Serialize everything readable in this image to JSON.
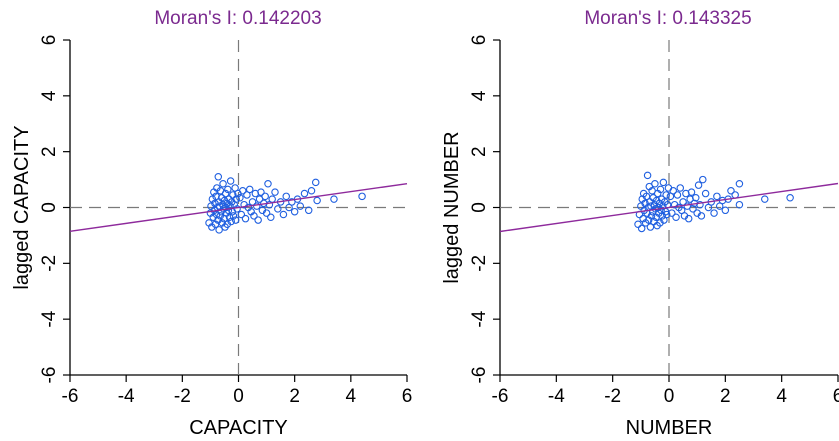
{
  "chart_data": [
    {
      "type": "scatter",
      "title": "Moran's I: 0.142203",
      "xlabel": "CAPACITY",
      "ylabel": "lagged CAPACITY",
      "xlim": [
        -6,
        6
      ],
      "ylim": [
        -6,
        6
      ],
      "xticks": [
        "-6",
        "-4",
        "-2",
        "0",
        "2",
        "4",
        "6"
      ],
      "yticks": [
        "-6",
        "-4",
        "-2",
        "0",
        "2",
        "4",
        "6"
      ],
      "reference_lines": {
        "x": 0,
        "y": 0,
        "style": "dashed"
      },
      "regression_line": {
        "slope": 0.1422,
        "intercept": 0.0
      },
      "points": [
        [
          -1.05,
          -0.55
        ],
        [
          -1.0,
          -0.2
        ],
        [
          -0.98,
          0.05
        ],
        [
          -0.95,
          -0.7
        ],
        [
          -0.93,
          0.3
        ],
        [
          -0.9,
          -0.35
        ],
        [
          -0.88,
          0.55
        ],
        [
          -0.86,
          -0.1
        ],
        [
          -0.84,
          0.15
        ],
        [
          -0.82,
          -0.6
        ],
        [
          -0.8,
          0.4
        ],
        [
          -0.78,
          -0.25
        ],
        [
          -0.77,
          0.7
        ],
        [
          -0.75,
          0.0
        ],
        [
          -0.73,
          -0.45
        ],
        [
          -0.72,
          1.1
        ],
        [
          -0.7,
          0.2
        ],
        [
          -0.69,
          -0.8
        ],
        [
          -0.67,
          0.05
        ],
        [
          -0.65,
          -0.3
        ],
        [
          -0.64,
          0.6
        ],
        [
          -0.62,
          -0.15
        ],
        [
          -0.6,
          0.35
        ],
        [
          -0.58,
          -0.55
        ],
        [
          -0.56,
          0.1
        ],
        [
          -0.55,
          0.85
        ],
        [
          -0.53,
          -0.05
        ],
        [
          -0.51,
          -0.4
        ],
        [
          -0.5,
          0.25
        ],
        [
          -0.48,
          -0.7
        ],
        [
          -0.46,
          0.5
        ],
        [
          -0.45,
          0.0
        ],
        [
          -0.43,
          -0.2
        ],
        [
          -0.41,
          0.15
        ],
        [
          -0.4,
          -0.6
        ],
        [
          -0.38,
          0.65
        ],
        [
          -0.36,
          -0.1
        ],
        [
          -0.34,
          0.3
        ],
        [
          -0.32,
          -0.35
        ],
        [
          -0.3,
          0.05
        ],
        [
          -0.28,
          0.95
        ],
        [
          -0.26,
          -0.5
        ],
        [
          -0.24,
          0.2
        ],
        [
          -0.22,
          -0.15
        ],
        [
          -0.2,
          0.45
        ],
        [
          -0.18,
          -0.3
        ],
        [
          -0.15,
          0.1
        ],
        [
          -0.12,
          0.7
        ],
        [
          -0.1,
          -0.45
        ],
        [
          -0.08,
          0.3
        ],
        [
          -0.05,
          -0.05
        ],
        [
          -0.02,
          0.5
        ],
        [
          0.05,
          0.35
        ],
        [
          0.1,
          -0.25
        ],
        [
          0.15,
          0.6
        ],
        [
          0.2,
          0.1
        ],
        [
          0.25,
          -0.4
        ],
        [
          0.3,
          0.45
        ],
        [
          0.35,
          0.0
        ],
        [
          0.4,
          0.65
        ],
        [
          0.45,
          -0.15
        ],
        [
          0.5,
          0.2
        ],
        [
          0.55,
          -0.3
        ],
        [
          0.6,
          0.5
        ],
        [
          0.65,
          0.05
        ],
        [
          0.7,
          -0.45
        ],
        [
          0.75,
          0.3
        ],
        [
          0.8,
          0.55
        ],
        [
          0.85,
          -0.1
        ],
        [
          0.9,
          0.15
        ],
        [
          0.95,
          0.4
        ],
        [
          1.0,
          -0.2
        ],
        [
          1.05,
          0.85
        ],
        [
          1.1,
          0.1
        ],
        [
          1.15,
          -0.35
        ],
        [
          1.2,
          0.3
        ],
        [
          1.3,
          0.55
        ],
        [
          1.4,
          -0.05
        ],
        [
          1.5,
          0.2
        ],
        [
          1.6,
          -0.25
        ],
        [
          1.7,
          0.4
        ],
        [
          1.8,
          0.0
        ],
        [
          1.9,
          0.2
        ],
        [
          2.0,
          -0.15
        ],
        [
          2.1,
          0.3
        ],
        [
          2.2,
          0.05
        ],
        [
          2.35,
          0.5
        ],
        [
          2.5,
          -0.1
        ],
        [
          2.6,
          0.6
        ],
        [
          2.75,
          0.9
        ],
        [
          2.8,
          0.25
        ],
        [
          3.4,
          0.3
        ],
        [
          4.4,
          0.4
        ]
      ]
    },
    {
      "type": "scatter",
      "title": "Moran's I: 0.143325",
      "xlabel": "NUMBER",
      "ylabel": "lagged NUMBER",
      "xlim": [
        -6,
        6
      ],
      "ylim": [
        -6,
        6
      ],
      "xticks": [
        "-6",
        "-4",
        "-2",
        "0",
        "2",
        "4",
        "6"
      ],
      "yticks": [
        "-6",
        "-4",
        "-2",
        "0",
        "2",
        "4",
        "6"
      ],
      "reference_lines": {
        "x": 0,
        "y": 0,
        "style": "dashed"
      },
      "regression_line": {
        "slope": 0.1433,
        "intercept": 0.0
      },
      "points": [
        [
          -1.1,
          -0.6
        ],
        [
          -1.05,
          -0.25
        ],
        [
          -1.0,
          0.05
        ],
        [
          -0.97,
          -0.75
        ],
        [
          -0.95,
          0.3
        ],
        [
          -0.92,
          -0.4
        ],
        [
          -0.9,
          0.5
        ],
        [
          -0.88,
          -0.1
        ],
        [
          -0.85,
          0.15
        ],
        [
          -0.83,
          -0.55
        ],
        [
          -0.8,
          0.4
        ],
        [
          -0.78,
          -0.2
        ],
        [
          -0.76,
          1.15
        ],
        [
          -0.74,
          0.0
        ],
        [
          -0.72,
          -0.45
        ],
        [
          -0.7,
          0.75
        ],
        [
          -0.68,
          0.2
        ],
        [
          -0.66,
          -0.7
        ],
        [
          -0.64,
          0.05
        ],
        [
          -0.62,
          -0.3
        ],
        [
          -0.6,
          0.6
        ],
        [
          -0.58,
          -0.15
        ],
        [
          -0.56,
          0.35
        ],
        [
          -0.54,
          -0.5
        ],
        [
          -0.52,
          0.1
        ],
        [
          -0.5,
          0.85
        ],
        [
          -0.48,
          -0.05
        ],
        [
          -0.46,
          -0.35
        ],
        [
          -0.44,
          0.25
        ],
        [
          -0.42,
          -0.65
        ],
        [
          -0.4,
          0.5
        ],
        [
          -0.38,
          0.0
        ],
        [
          -0.36,
          -0.2
        ],
        [
          -0.34,
          0.15
        ],
        [
          -0.32,
          -0.55
        ],
        [
          -0.3,
          0.65
        ],
        [
          -0.28,
          -0.1
        ],
        [
          -0.26,
          0.3
        ],
        [
          -0.24,
          -0.3
        ],
        [
          -0.22,
          0.05
        ],
        [
          -0.2,
          0.9
        ],
        [
          -0.18,
          -0.45
        ],
        [
          -0.15,
          0.2
        ],
        [
          -0.12,
          -0.15
        ],
        [
          -0.1,
          0.45
        ],
        [
          -0.08,
          -0.25
        ],
        [
          -0.05,
          0.1
        ],
        [
          -0.02,
          0.7
        ],
        [
          0.05,
          0.4
        ],
        [
          0.1,
          -0.2
        ],
        [
          0.15,
          0.6
        ],
        [
          0.2,
          0.1
        ],
        [
          0.25,
          -0.35
        ],
        [
          0.3,
          0.45
        ],
        [
          0.35,
          0.0
        ],
        [
          0.4,
          0.7
        ],
        [
          0.45,
          -0.1
        ],
        [
          0.5,
          0.2
        ],
        [
          0.55,
          -0.3
        ],
        [
          0.6,
          0.5
        ],
        [
          0.65,
          0.05
        ],
        [
          0.7,
          -0.4
        ],
        [
          0.75,
          0.3
        ],
        [
          0.8,
          0.55
        ],
        [
          0.85,
          -0.05
        ],
        [
          0.9,
          0.15
        ],
        [
          0.95,
          0.35
        ],
        [
          1.0,
          -0.2
        ],
        [
          1.05,
          0.8
        ],
        [
          1.1,
          0.1
        ],
        [
          1.15,
          -0.3
        ],
        [
          1.2,
          1.0
        ],
        [
          1.3,
          0.5
        ],
        [
          1.4,
          0.0
        ],
        [
          1.5,
          0.2
        ],
        [
          1.6,
          -0.2
        ],
        [
          1.7,
          0.4
        ],
        [
          1.8,
          0.05
        ],
        [
          1.9,
          0.25
        ],
        [
          2.0,
          -0.1
        ],
        [
          2.1,
          0.3
        ],
        [
          2.2,
          0.6
        ],
        [
          2.35,
          0.45
        ],
        [
          2.5,
          0.85
        ],
        [
          2.5,
          0.1
        ],
        [
          3.4,
          0.3
        ],
        [
          4.3,
          0.35
        ]
      ]
    }
  ],
  "colors": {
    "title": "#7b2a8f",
    "regression": "#8e2a9c",
    "points": "#1f5fe0",
    "reference": "#7a7a7a",
    "axis": "#000000"
  }
}
